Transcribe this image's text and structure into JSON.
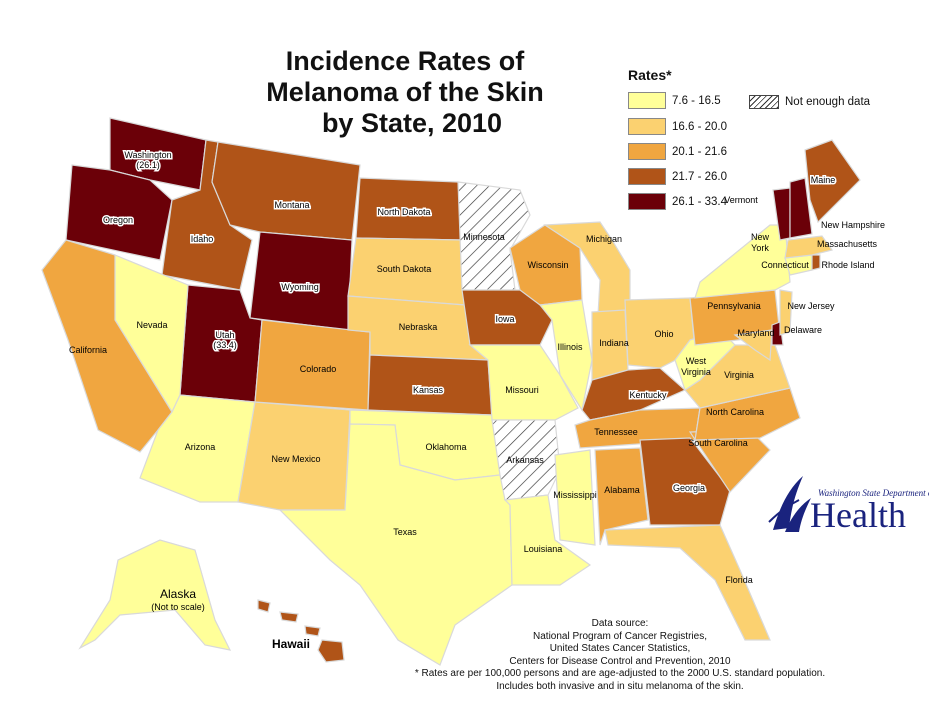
{
  "title_lines": [
    "Incidence Rates of",
    "Melanoma of the Skin",
    "by State, 2010"
  ],
  "legend": {
    "title": "Rates*",
    "bins": [
      {
        "label": "7.6 - 16.5",
        "color": "#ffff99"
      },
      {
        "label": "16.6 - 20.0",
        "color": "#fbd170"
      },
      {
        "label": "20.1 - 21.6",
        "color": "#f0a640"
      },
      {
        "label": "21.7 - 26.0",
        "color": "#b05418"
      },
      {
        "label": "26.1 - 33.4",
        "color": "#6b0008"
      }
    ],
    "no_data_label": "Not enough data"
  },
  "states": [
    {
      "name": "Washington",
      "value_label": "(26.1)",
      "bin": 4
    },
    {
      "name": "Oregon",
      "bin": 4
    },
    {
      "name": "Idaho",
      "bin": 3
    },
    {
      "name": "Montana",
      "bin": 3
    },
    {
      "name": "Wyoming",
      "bin": 4
    },
    {
      "name": "Utah",
      "value_label": "(33.4)",
      "bin": 4
    },
    {
      "name": "Nevada",
      "bin": 0
    },
    {
      "name": "California",
      "bin": 2
    },
    {
      "name": "Arizona",
      "bin": 0
    },
    {
      "name": "New Mexico",
      "bin": 1
    },
    {
      "name": "Colorado",
      "bin": 2
    },
    {
      "name": "North Dakota",
      "bin": 3
    },
    {
      "name": "South Dakota",
      "bin": 1
    },
    {
      "name": "Nebraska",
      "bin": 1
    },
    {
      "name": "Kansas",
      "bin": 3
    },
    {
      "name": "Oklahoma",
      "bin": 0
    },
    {
      "name": "Texas",
      "bin": 0
    },
    {
      "name": "Minnesota",
      "bin": null
    },
    {
      "name": "Iowa",
      "bin": 3
    },
    {
      "name": "Missouri",
      "bin": 0
    },
    {
      "name": "Arkansas",
      "bin": null
    },
    {
      "name": "Louisiana",
      "bin": 0
    },
    {
      "name": "Wisconsin",
      "bin": 2
    },
    {
      "name": "Illinois",
      "bin": 0
    },
    {
      "name": "Michigan",
      "bin": 1
    },
    {
      "name": "Indiana",
      "bin": 1
    },
    {
      "name": "Ohio",
      "bin": 1
    },
    {
      "name": "Kentucky",
      "bin": 3
    },
    {
      "name": "Tennessee",
      "bin": 2
    },
    {
      "name": "Mississippi",
      "bin": 0
    },
    {
      "name": "Alabama",
      "bin": 2
    },
    {
      "name": "Georgia",
      "bin": 3
    },
    {
      "name": "Florida",
      "bin": 1
    },
    {
      "name": "South Carolina",
      "bin": 2
    },
    {
      "name": "North Carolina",
      "bin": 2
    },
    {
      "name": "Virginia",
      "bin": 1
    },
    {
      "name": "West Virginia",
      "bin": 0
    },
    {
      "name": "Pennsylvania",
      "bin": 2
    },
    {
      "name": "New York",
      "bin": 0
    },
    {
      "name": "Maryland",
      "bin": 1
    },
    {
      "name": "Delaware",
      "bin": 4
    },
    {
      "name": "New Jersey",
      "bin": 1
    },
    {
      "name": "Connecticut",
      "bin": 0
    },
    {
      "name": "Rhode Island",
      "bin": 3
    },
    {
      "name": "Massachusetts",
      "bin": 1
    },
    {
      "name": "Vermont",
      "bin": 4
    },
    {
      "name": "New Hampshire",
      "bin": 4
    },
    {
      "name": "Maine",
      "bin": 3
    },
    {
      "name": "Alaska",
      "value_label": "(Not to scale)",
      "bin": 0
    },
    {
      "name": "Hawaii",
      "bin": 3
    }
  ],
  "source_lines": [
    "Data source:",
    "National Program of Cancer Registries,",
    "United States Cancer Statistics,",
    "Centers for Disease Control and Prevention, 2010",
    "* Rates are per 100,000 persons and are age-adjusted to the 2000 U.S. standard population.",
    "Includes both invasive and in situ melanoma of the skin."
  ],
  "logo": {
    "department": "Washington State Department of",
    "wordmark": "Health",
    "color": "#1a237e"
  }
}
